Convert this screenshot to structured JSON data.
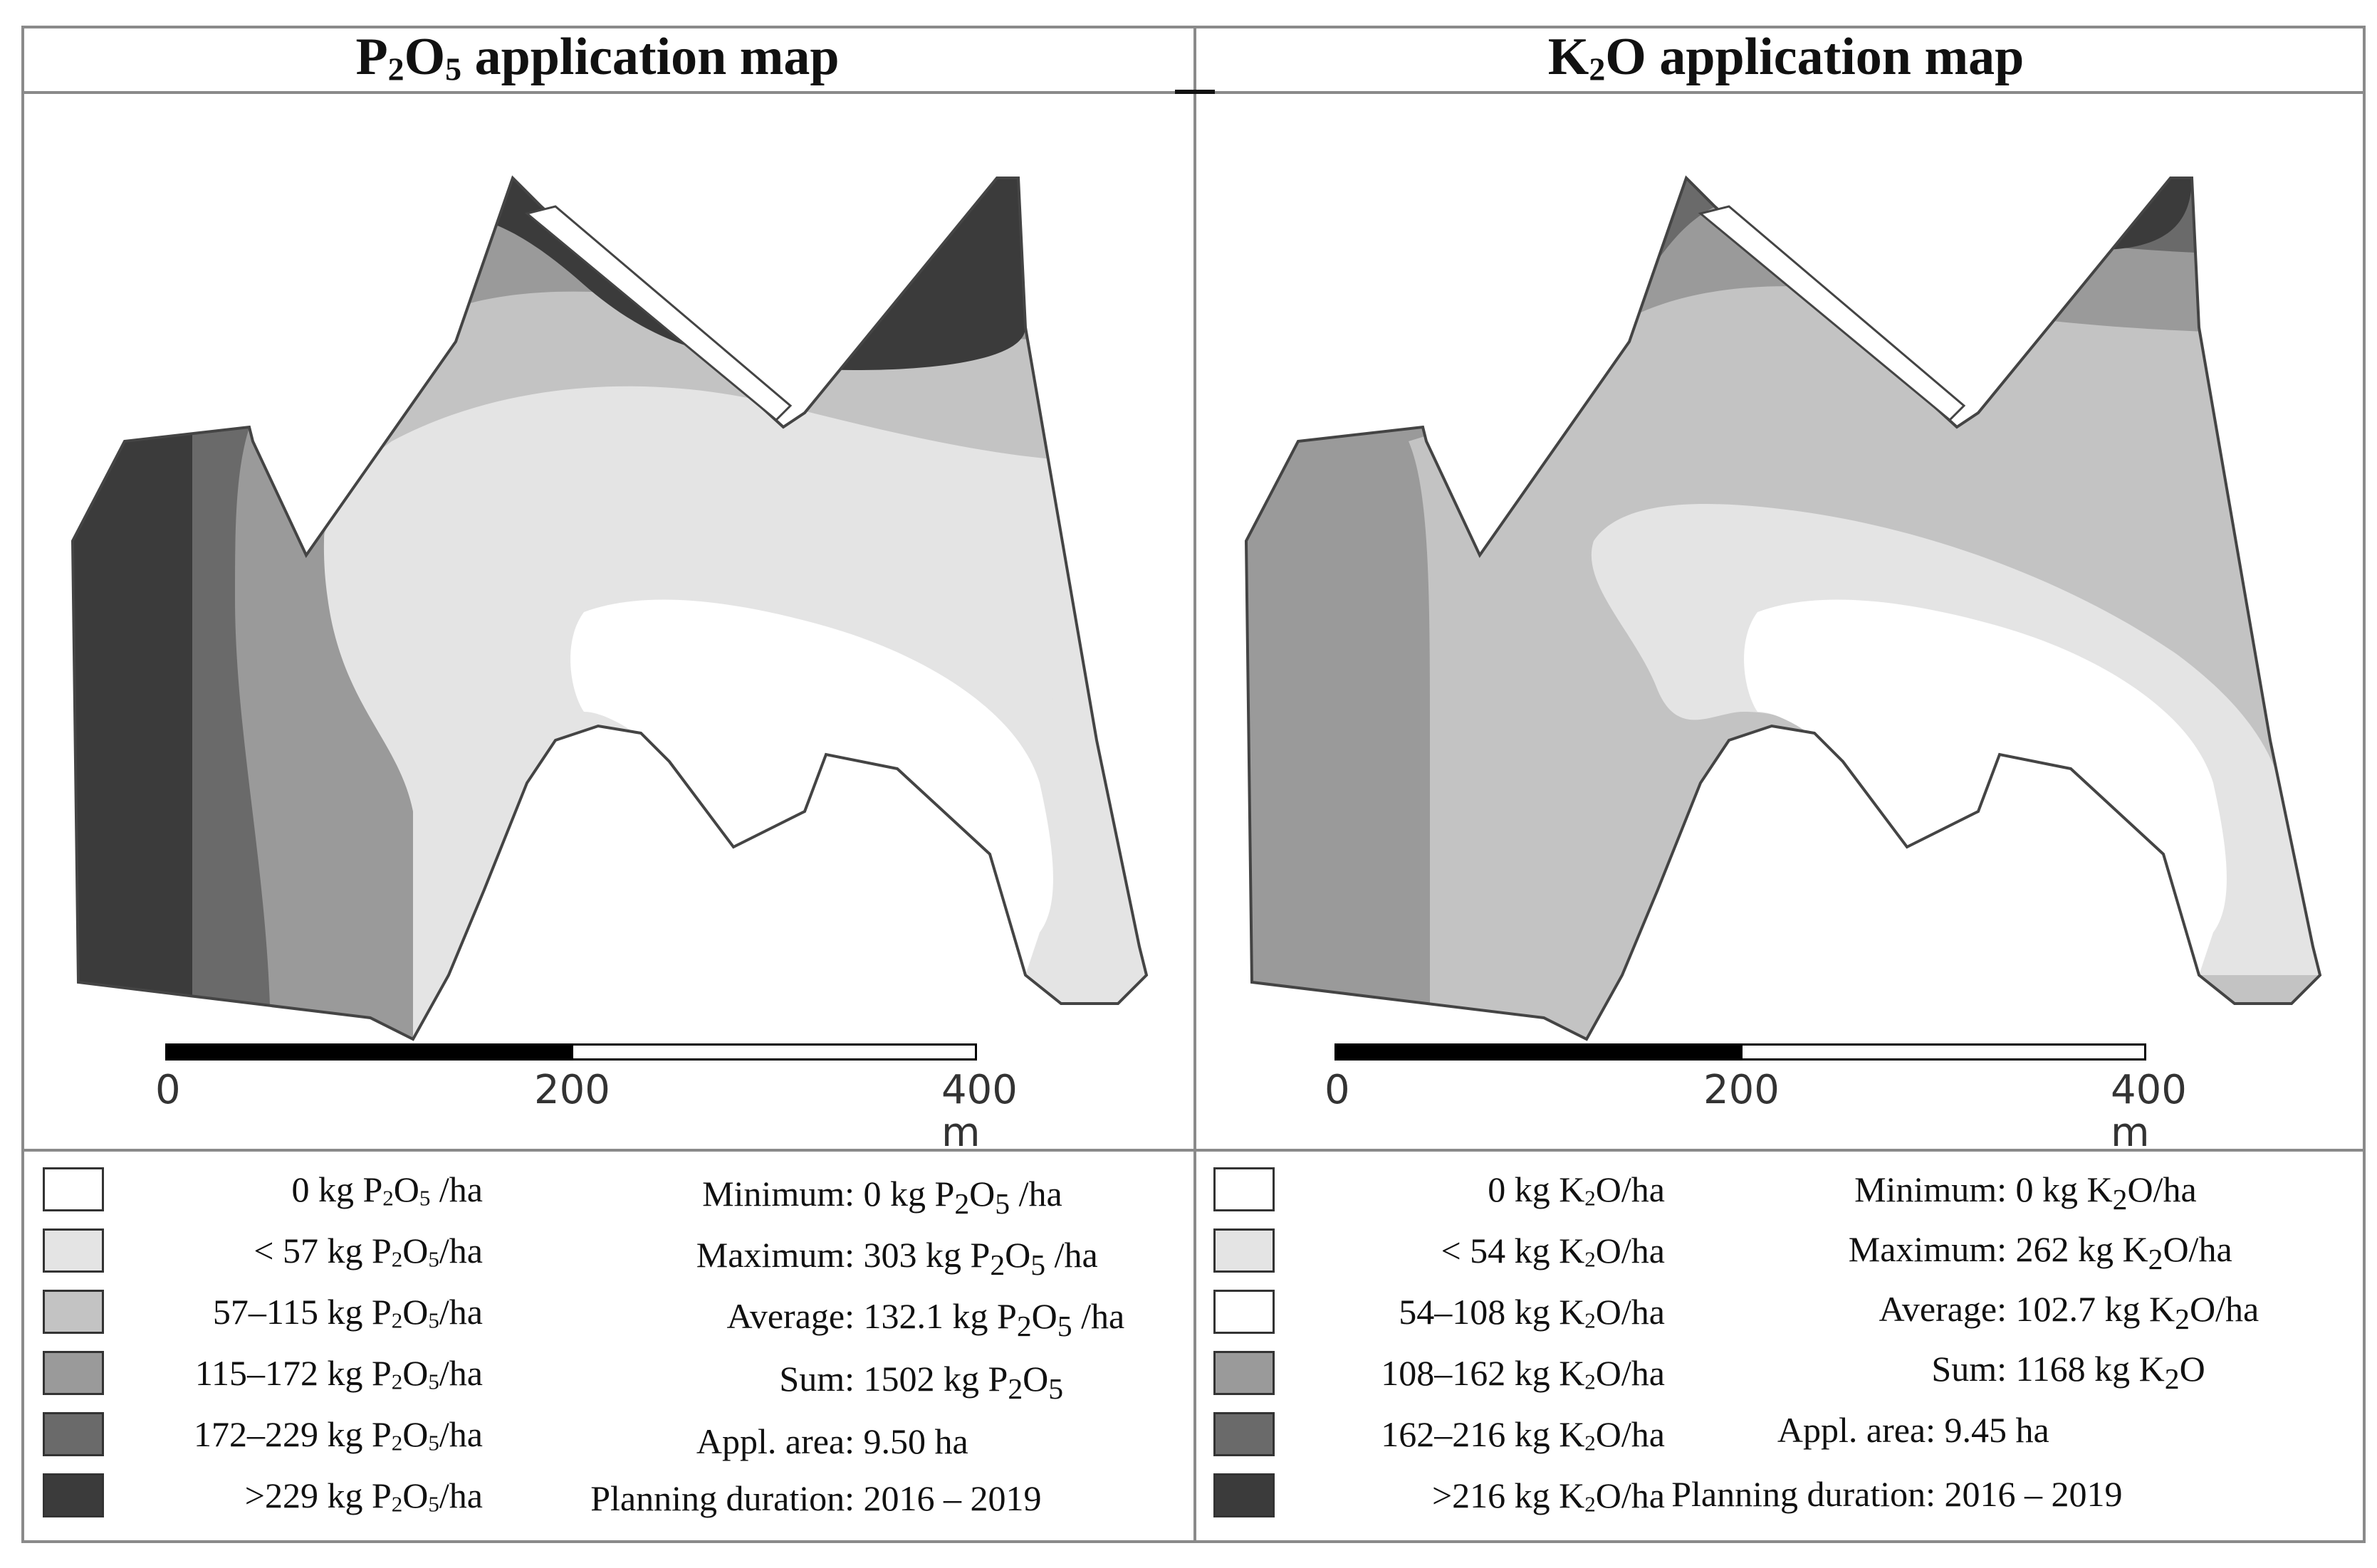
{
  "panels": [
    {
      "id": "p2o5",
      "title_main": "P",
      "title_sub1": "2",
      "title_mid": "O",
      "title_sub2": "5",
      "title_rest": " application map",
      "scale": {
        "tick_0": "0",
        "tick_200": "200",
        "tick_400": "400 m"
      },
      "legend": [
        {
          "pre": "0 kg P",
          "s1": "2",
          "mid": "O",
          "s2": "5",
          "post": " /ha",
          "color": "#ffffff"
        },
        {
          "pre": "< 57 kg P",
          "s1": "2",
          "mid": "O",
          "s2": "5",
          "post": "/ha",
          "color": "#e4e4e4"
        },
        {
          "pre": "57–115 kg P",
          "s1": "2",
          "mid": "O",
          "s2": "5",
          "post": "/ha",
          "color": "#c3c3c3"
        },
        {
          "pre": "115–172 kg P",
          "s1": "2",
          "mid": "O",
          "s2": "5",
          "post": "/ha",
          "color": "#9a9a9a"
        },
        {
          "pre": "172–229 kg P",
          "s1": "2",
          "mid": "O",
          "s2": "5",
          "post": "/ha",
          "color": "#6a6a6a"
        },
        {
          "pre": ">229 kg P",
          "s1": "2",
          "mid": "O",
          "s2": "5",
          "post": "/ha",
          "color": "#3b3b3b"
        }
      ],
      "stats": [
        {
          "label": "Minimum:",
          "pre": " 0 kg P",
          "s1": "2",
          "mid": "O",
          "s2": "5",
          "post": " /ha"
        },
        {
          "label": "Maximum:",
          "pre": " 303 kg P",
          "s1": "2",
          "mid": "O",
          "s2": "5",
          "post": " /ha"
        },
        {
          "label": "Average:",
          "pre": " 132.1 kg P",
          "s1": "2",
          "mid": "O",
          "s2": "5",
          "post": " /ha"
        },
        {
          "label": "Sum:",
          "pre": " 1502 kg P",
          "s1": "2",
          "mid": "O",
          "s2": "5",
          "post": ""
        },
        {
          "label": "Appl. area:",
          "pre": " 9.50 ha",
          "s1": "",
          "mid": "",
          "s2": "",
          "post": ""
        },
        {
          "label": "Planning duration:",
          "pre": " 2016 – 2019",
          "s1": "",
          "mid": "",
          "s2": "",
          "post": ""
        }
      ]
    },
    {
      "id": "k2o",
      "title_main": "K",
      "title_sub1": "2",
      "title_mid": "O",
      "title_sub2": "",
      "title_rest": " application map",
      "scale": {
        "tick_0": "0",
        "tick_200": "200",
        "tick_400": "400 m"
      },
      "legend": [
        {
          "pre": "0 kg K",
          "s1": "2",
          "mid": "O/ha",
          "s2": "",
          "post": "",
          "color": "#ffffff"
        },
        {
          "pre": "< 54 kg K",
          "s1": "2",
          "mid": "O/ha",
          "s2": "",
          "post": "",
          "color": "#e4e4e4"
        },
        {
          "pre": "54–108 kg K",
          "s1": "2",
          "mid": "O/ha",
          "s2": "",
          "post": "",
          "color": "#ffffff"
        },
        {
          "pre": "108–162 kg K",
          "s1": "2",
          "mid": "O/ha",
          "s2": "",
          "post": "",
          "color": "#9a9a9a"
        },
        {
          "pre": "162–216 kg K",
          "s1": "2",
          "mid": "O/ha",
          "s2": "",
          "post": "",
          "color": "#6a6a6a"
        },
        {
          "pre": ">216 kg K",
          "s1": "2",
          "mid": "O/ha",
          "s2": "",
          "post": "",
          "color": "#3b3b3b"
        }
      ],
      "stats": [
        {
          "label": "Minimum:",
          "pre": " 0 kg K",
          "s1": "2",
          "mid": "O/ha",
          "s2": "",
          "post": ""
        },
        {
          "label": "Maximum:",
          "pre": " 262 kg K",
          "s1": "2",
          "mid": "O/ha",
          "s2": "",
          "post": ""
        },
        {
          "label": "Average:",
          "pre": " 102.7 kg K",
          "s1": "2",
          "mid": "O/ha",
          "s2": "",
          "post": ""
        },
        {
          "label": "Sum:",
          "pre": " 1168 kg K",
          "s1": "2",
          "mid": "O",
          "s2": "",
          "post": ""
        },
        {
          "label": "Appl. area:",
          "pre": " 9.45 ha",
          "s1": "",
          "mid": "",
          "s2": "",
          "post": ""
        },
        {
          "label": "Planning duration:",
          "pre": " 2016 – 2019",
          "s1": "",
          "mid": "",
          "s2": "",
          "post": ""
        }
      ]
    }
  ]
}
